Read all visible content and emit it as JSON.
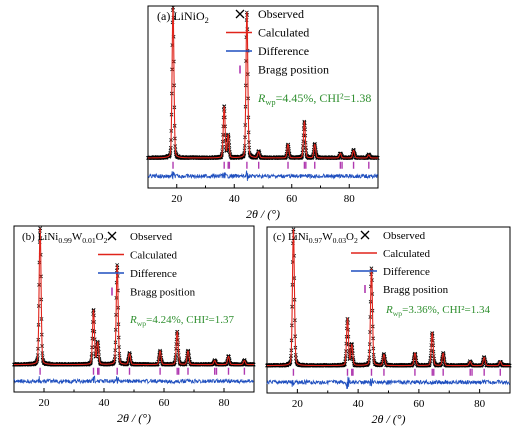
{
  "colors": {
    "observed": "#000000",
    "calculated": "#e0241b",
    "difference": "#1f4fbf",
    "bragg": "#b03ab0",
    "rfactor": "#2f8f2f"
  },
  "legend": {
    "observed": "Observed",
    "calculated": "Calculated",
    "difference": "Difference",
    "bragg": "Bragg position",
    "observed_marker": "×",
    "bragg_marker": "|"
  },
  "chart_data": [
    {
      "type": "line",
      "panel_label": "(a) LiNiO",
      "panel_sub": "2",
      "xlabel": "2θ / (°)",
      "xlim": [
        10,
        90
      ],
      "xticks": [
        "20",
        "40",
        "60",
        "80"
      ],
      "rfactor": {
        "prefix": "R",
        "sub": "wp",
        "text": "=4.45%, CHI²=1.38"
      },
      "peaks": [
        {
          "x": 18.7,
          "y": 100
        },
        {
          "x": 36.5,
          "y": 34
        },
        {
          "x": 37.9,
          "y": 15
        },
        {
          "x": 44.4,
          "y": 97
        },
        {
          "x": 48.5,
          "y": 4
        },
        {
          "x": 58.7,
          "y": 9
        },
        {
          "x": 64.4,
          "y": 24
        },
        {
          "x": 68.0,
          "y": 9
        },
        {
          "x": 76.9,
          "y": 3
        },
        {
          "x": 81.5,
          "y": 5
        },
        {
          "x": 86.8,
          "y": 2
        }
      ],
      "bragg_positions": [
        18.7,
        36.5,
        37.9,
        38.3,
        44.4,
        48.5,
        58.7,
        64.4,
        64.9,
        68.0,
        76.9,
        77.5,
        81.5,
        86.8
      ]
    },
    {
      "type": "line",
      "panel_label": "(b) LiNi",
      "panel_parts": [
        {
          "t": "(b) LiNi",
          "s": false
        },
        {
          "t": "0.99",
          "s": true
        },
        {
          "t": "W",
          "s": false
        },
        {
          "t": "0.01",
          "s": true
        },
        {
          "t": "O",
          "s": false
        },
        {
          "t": "2",
          "s": true
        }
      ],
      "xlabel": "2θ / (°)",
      "xlim": [
        10,
        90
      ],
      "xticks": [
        "20",
        "40",
        "60",
        "80"
      ],
      "rfactor": {
        "prefix": "R",
        "sub": "wp",
        "text": "=4.24%, CHI²=1.37"
      },
      "peaks": [
        {
          "x": 18.7,
          "y": 100
        },
        {
          "x": 36.5,
          "y": 40
        },
        {
          "x": 37.9,
          "y": 16
        },
        {
          "x": 44.4,
          "y": 73
        },
        {
          "x": 48.5,
          "y": 8
        },
        {
          "x": 58.7,
          "y": 10
        },
        {
          "x": 64.4,
          "y": 24
        },
        {
          "x": 68.0,
          "y": 10
        },
        {
          "x": 76.9,
          "y": 3
        },
        {
          "x": 81.5,
          "y": 6
        },
        {
          "x": 86.8,
          "y": 3
        }
      ],
      "bragg_positions": [
        18.7,
        36.5,
        37.9,
        38.3,
        44.4,
        48.5,
        58.7,
        64.4,
        64.9,
        68.0,
        76.9,
        77.5,
        81.5,
        86.8
      ]
    },
    {
      "type": "line",
      "panel_label": "(c) LiNi",
      "panel_parts": [
        {
          "t": "(c) LiNi",
          "s": false
        },
        {
          "t": "0.97",
          "s": true
        },
        {
          "t": "W",
          "s": false
        },
        {
          "t": "0.03",
          "s": true
        },
        {
          "t": "O",
          "s": false
        },
        {
          "t": "2",
          "s": true
        }
      ],
      "xlabel": "2θ / (°)",
      "xlim": [
        10,
        90
      ],
      "xticks": [
        "20",
        "40",
        "60",
        "80"
      ],
      "rfactor": {
        "prefix": "R",
        "sub": "wp",
        "text": "=3.36%, CHI²=1.34"
      },
      "peaks": [
        {
          "x": 18.7,
          "y": 100
        },
        {
          "x": 36.5,
          "y": 34
        },
        {
          "x": 37.9,
          "y": 15
        },
        {
          "x": 44.4,
          "y": 71
        },
        {
          "x": 48.5,
          "y": 8
        },
        {
          "x": 58.7,
          "y": 9
        },
        {
          "x": 64.4,
          "y": 24
        },
        {
          "x": 68.0,
          "y": 9
        },
        {
          "x": 76.9,
          "y": 3
        },
        {
          "x": 81.5,
          "y": 6
        },
        {
          "x": 86.8,
          "y": 3
        }
      ],
      "bragg_positions": [
        18.7,
        36.5,
        37.9,
        38.3,
        44.4,
        48.5,
        58.7,
        64.4,
        64.9,
        68.0,
        76.9,
        77.5,
        81.5,
        86.8
      ]
    }
  ]
}
